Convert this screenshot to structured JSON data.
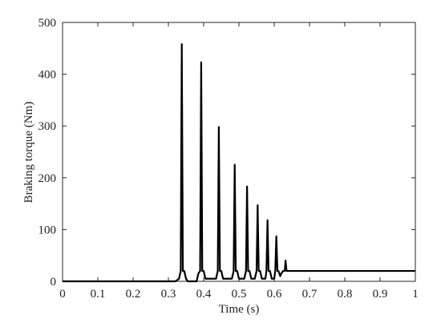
{
  "chart_data": {
    "type": "line",
    "x_label": "Time (s)",
    "y_label": "Braking torque (Nm)",
    "x": [
      0,
      0.32,
      0.33,
      0.335,
      0.338,
      0.341,
      0.345,
      0.35,
      0.355,
      0.38,
      0.385,
      0.39,
      0.393,
      0.396,
      0.4,
      0.405,
      0.435,
      0.44,
      0.443,
      0.446,
      0.45,
      0.455,
      0.48,
      0.485,
      0.488,
      0.491,
      0.495,
      0.5,
      0.515,
      0.52,
      0.523,
      0.526,
      0.53,
      0.535,
      0.545,
      0.55,
      0.553,
      0.556,
      0.56,
      0.565,
      0.575,
      0.578,
      0.581,
      0.584,
      0.588,
      0.593,
      0.6,
      0.603,
      0.606,
      0.609,
      0.612,
      0.617,
      0.62,
      0.625,
      0.63,
      0.632,
      0.635,
      1
    ],
    "series": [
      {
        "color": "#000000",
        "values": [
          0,
          0,
          5,
          20,
          458,
          20,
          20,
          5,
          0,
          0,
          15,
          20,
          423,
          20,
          20,
          5,
          5,
          20,
          298,
          20,
          20,
          5,
          5,
          20,
          225,
          20,
          20,
          5,
          5,
          20,
          183,
          20,
          20,
          5,
          5,
          20,
          147,
          20,
          20,
          5,
          5,
          20,
          118,
          20,
          20,
          5,
          5,
          20,
          87,
          20,
          20,
          10,
          15,
          20,
          20,
          40,
          20,
          20
        ]
      }
    ],
    "xlim": [
      0,
      1
    ],
    "xticks": [
      0,
      0.1,
      0.2,
      0.3,
      0.4,
      0.5,
      0.6,
      0.7,
      0.8,
      0.9,
      1
    ],
    "ylim": [
      0,
      500
    ],
    "yticks": [
      0,
      100,
      200,
      300,
      400,
      500
    ],
    "grid": false
  }
}
